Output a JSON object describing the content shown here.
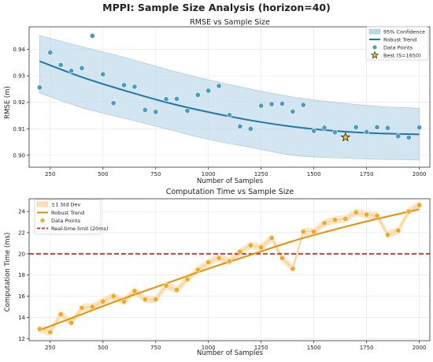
{
  "suptitle": "MPPI: Sample Size Analysis (horizon=40)",
  "chart_data": [
    {
      "type": "scatter",
      "title": "RMSE vs Sample Size",
      "xlabel": "Number of Samples",
      "ylabel": "RMSE (m)",
      "xlim": [
        150,
        2050
      ],
      "ylim": [
        0.8955,
        0.9485
      ],
      "xticks": [
        250,
        500,
        750,
        1000,
        1250,
        1500,
        1750,
        2000
      ],
      "yticks": [
        0.9,
        0.91,
        0.92,
        0.93,
        0.94
      ],
      "ytick_labels": [
        "0.90",
        "0.91",
        "0.92",
        "0.93",
        "0.94"
      ],
      "grid": true,
      "legend_position": "top-right",
      "legend": [
        "95% Confidence",
        "Robust Trend",
        "Data Points",
        "Best (S=1650)"
      ],
      "colors": {
        "points": "#4b9cc4",
        "trend": "#2176a8",
        "band": "#bcd7e8",
        "best": "#f5c518"
      },
      "series": [
        {
          "name": "Data Points",
          "x": [
            200,
            250,
            300,
            350,
            400,
            450,
            500,
            550,
            600,
            650,
            700,
            750,
            800,
            850,
            900,
            950,
            1000,
            1050,
            1100,
            1150,
            1200,
            1250,
            1300,
            1350,
            1400,
            1450,
            1500,
            1550,
            1600,
            1650,
            1700,
            1750,
            1800,
            1850,
            1900,
            1950,
            2000
          ],
          "y": [
            0.9256,
            0.9388,
            0.9341,
            0.9319,
            0.9329,
            0.9451,
            0.9306,
            0.9197,
            0.9265,
            0.9259,
            0.9171,
            0.9164,
            0.9212,
            0.9213,
            0.9168,
            0.9228,
            0.9244,
            0.9262,
            0.9152,
            0.9109,
            0.91,
            0.9187,
            0.9193,
            0.9195,
            0.9165,
            0.919,
            0.9092,
            0.9104,
            0.9087,
            0.9068,
            0.9106,
            0.9088,
            0.9106,
            0.9103,
            0.9072,
            0.9067,
            0.9105
          ]
        },
        {
          "name": "Robust Trend",
          "x": [
            200,
            400,
            600,
            800,
            1000,
            1200,
            1400,
            1600,
            1800,
            2000
          ],
          "y": [
            0.9355,
            0.9295,
            0.9245,
            0.92,
            0.9163,
            0.9132,
            0.9108,
            0.9092,
            0.9083,
            0.9079
          ]
        },
        {
          "name": "95% Confidence",
          "x": [
            200,
            400,
            600,
            800,
            1000,
            1200,
            1400,
            1600,
            1800,
            2000
          ],
          "lower": [
            0.9235,
            0.918,
            0.914,
            0.91,
            0.906,
            0.903,
            0.9,
            0.899,
            0.8985,
            0.8982
          ],
          "upper": [
            0.9452,
            0.941,
            0.937,
            0.9325,
            0.9285,
            0.925,
            0.922,
            0.92,
            0.9185,
            0.9177
          ]
        },
        {
          "name": "Best (S=1650)",
          "x": [
            1650
          ],
          "y": [
            0.9068
          ]
        }
      ]
    },
    {
      "type": "scatter",
      "title": "Computation Time vs Sample Size",
      "xlabel": "Number of Samples",
      "ylabel": "Computation Time (ms)",
      "xlim": [
        150,
        2050
      ],
      "ylim": [
        11.8,
        25.2
      ],
      "xticks": [
        250,
        500,
        750,
        1000,
        1250,
        1500,
        1750,
        2000
      ],
      "yticks": [
        12,
        14,
        16,
        18,
        20,
        22,
        24
      ],
      "ytick_labels": [
        "12",
        "14",
        "16",
        "18",
        "20",
        "22",
        "24"
      ],
      "grid": true,
      "legend_position": "top-left",
      "legend": [
        "±1 Std Dev",
        "Robust Trend",
        "Data Points",
        "Real-time limit (20ms)"
      ],
      "colors": {
        "points": "#f5a623",
        "trend": "#f08c00",
        "band": "#fde0b8",
        "limit": "#e8231f"
      },
      "series": [
        {
          "name": "Data Points",
          "x": [
            200,
            250,
            300,
            350,
            400,
            450,
            500,
            550,
            600,
            650,
            700,
            750,
            800,
            850,
            900,
            950,
            1000,
            1050,
            1100,
            1150,
            1200,
            1250,
            1300,
            1350,
            1400,
            1450,
            1500,
            1550,
            1600,
            1650,
            1700,
            1750,
            1800,
            1850,
            1900,
            1950,
            2000
          ],
          "y": [
            12.9,
            12.6,
            14.3,
            13.5,
            14.9,
            15.0,
            15.5,
            16.0,
            15.5,
            16.5,
            15.7,
            15.7,
            17.0,
            16.6,
            17.6,
            18.5,
            19.2,
            19.6,
            19.3,
            20.2,
            20.8,
            20.6,
            21.5,
            19.6,
            18.6,
            22.1,
            22.1,
            22.9,
            23.2,
            23.3,
            23.9,
            23.7,
            23.6,
            21.8,
            22.2,
            24.0,
            24.6
          ]
        },
        {
          "name": "Robust Trend",
          "x": [
            200,
            400,
            600,
            800,
            1000,
            1200,
            1400,
            1600,
            1800,
            2000
          ],
          "y": [
            12.8,
            14.3,
            15.8,
            17.2,
            18.6,
            19.9,
            21.2,
            22.3,
            23.3,
            24.2
          ]
        },
        {
          "name": "Real-time limit (20ms)",
          "y": 20
        }
      ]
    }
  ]
}
